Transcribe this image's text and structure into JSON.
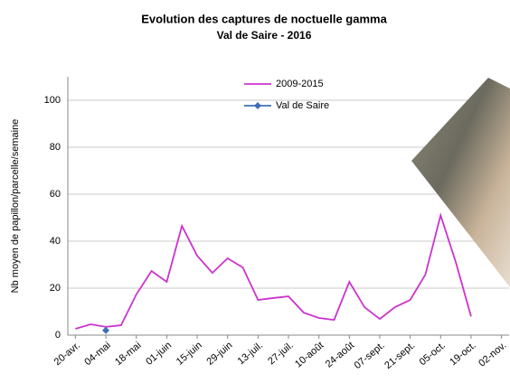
{
  "chart_data": {
    "type": "line",
    "title": "Evolution des captures de noctuelle gamma",
    "subtitle": "Val de Saire - 2016",
    "y_label": "Nb moyen de papillon/parcelle/semaine",
    "categories": [
      "20-avr.",
      null,
      "04-mai",
      null,
      "18-mai",
      null,
      "01-juin",
      null,
      "15-juin",
      null,
      "29-juin",
      null,
      "13-juil.",
      null,
      "27-juil.",
      null,
      "10-août",
      null,
      "24-août",
      null,
      "07-sept.",
      null,
      "21-sept.",
      null,
      "05-oct.",
      null,
      "19-oct.",
      null,
      "02-nov."
    ],
    "series": [
      {
        "name": "2009-2015",
        "color": "#cc33cc",
        "values": [
          2.7,
          4.6,
          3.5,
          4.2,
          17.3,
          27.3,
          22.7,
          46.5,
          33.8,
          26.5,
          32.7,
          28.8,
          15,
          15.8,
          16.5,
          9.6,
          7.3,
          6.5,
          22.7,
          11.9,
          6.9,
          11.9,
          15,
          25.8,
          51,
          31,
          8,
          null,
          null
        ]
      },
      {
        "name": "Val de Saire",
        "color": "#3f6fb5",
        "marker": "diamond",
        "values": [
          null,
          null,
          2,
          null,
          null,
          null,
          null,
          null,
          null,
          null,
          null,
          null,
          null,
          null,
          null,
          null,
          null,
          null,
          null,
          null,
          null,
          null,
          null,
          null,
          null,
          null,
          null,
          null,
          null
        ]
      }
    ],
    "ylim": [
      0,
      110
    ],
    "yticks": [
      0,
      20,
      40,
      60,
      80,
      100
    ],
    "grid": true
  }
}
